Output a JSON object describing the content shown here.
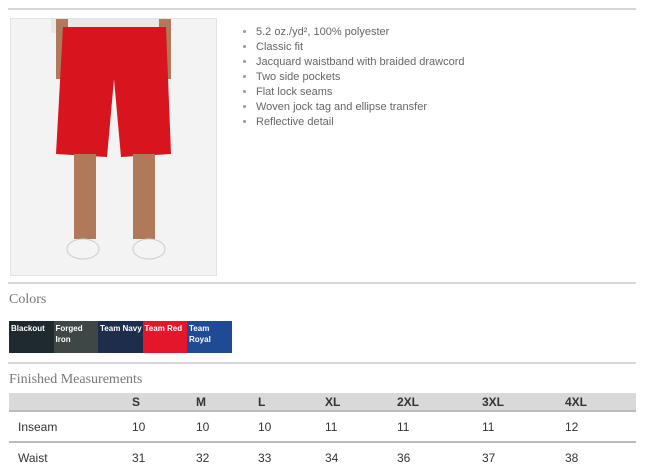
{
  "features": [
    "5.2 oz./yd², 100% polyester",
    "Classic fit",
    "Jacquard waistband with braided drawcord",
    "Two side pockets",
    "Flat lock seams",
    "Woven jock tag and ellipse transfer",
    "Reflective detail"
  ],
  "colors_heading": "Colors",
  "colors": [
    {
      "label": "Blackout",
      "hex": "#1f2a30"
    },
    {
      "label": "Forged Iron",
      "hex": "#3f4746"
    },
    {
      "label": "Team Navy",
      "hex": "#1f2d4d"
    },
    {
      "label": "Team Red",
      "hex": "#e3162c"
    },
    {
      "label": "Team Royal",
      "hex": "#1f4a94"
    }
  ],
  "measurements_heading": "Finished Measurements",
  "table": {
    "headers": [
      "",
      "S",
      "M",
      "L",
      "XL",
      "2XL",
      "3XL",
      "4XL"
    ],
    "rows": [
      [
        "Inseam",
        "10",
        "10",
        "10",
        "11",
        "11",
        "11",
        "12"
      ],
      [
        "Waist",
        "31",
        "32",
        "33",
        "34",
        "36",
        "37",
        "38"
      ]
    ]
  }
}
